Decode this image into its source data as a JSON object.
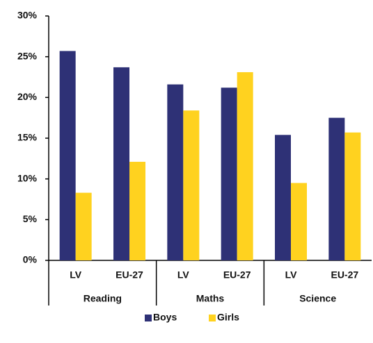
{
  "chart_data": {
    "type": "bar",
    "categories": [
      "LV",
      "EU-27",
      "LV",
      "EU-27",
      "LV",
      "EU-27"
    ],
    "groups": [
      "Reading",
      "Maths",
      "Science"
    ],
    "series": [
      {
        "name": "Boys",
        "color": "#2e3176",
        "values": [
          25.7,
          23.7,
          21.6,
          21.2,
          15.4,
          17.5
        ]
      },
      {
        "name": "Girls",
        "color": "#ffd21f",
        "values": [
          8.3,
          12.1,
          18.4,
          23.1,
          9.5,
          15.7
        ]
      }
    ],
    "ylim": [
      0,
      30
    ],
    "yticks": [
      {
        "value": 0,
        "label": "0%"
      },
      {
        "value": 5,
        "label": "5%"
      },
      {
        "value": 10,
        "label": "10%"
      },
      {
        "value": 15,
        "label": "15%"
      },
      {
        "value": 20,
        "label": "20%"
      },
      {
        "value": 25,
        "label": "25%"
      },
      {
        "value": 30,
        "label": "30%"
      }
    ],
    "grid": false,
    "legend": "bottom"
  }
}
